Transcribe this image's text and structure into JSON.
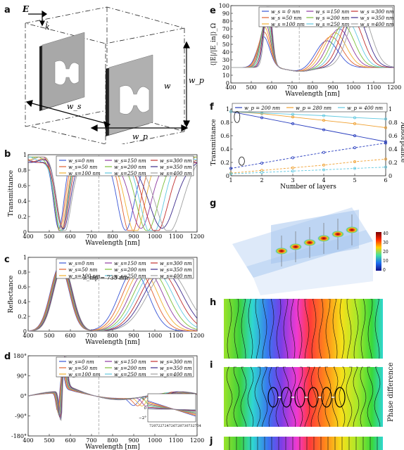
{
  "panel_labels": {
    "a": "a",
    "b": "b",
    "c": "c",
    "d": "d",
    "e": "e",
    "f": "f",
    "g": "g",
    "h": "h",
    "i": "i",
    "j": "j"
  },
  "schematic": {
    "field_e": "E",
    "field_k": "k̂",
    "ws": "w_s",
    "wp_bottom": "w_p",
    "wp_side": "w_p",
    "w": "w"
  },
  "legend_ws": [
    "w_s=0  nm",
    "w_s=150  nm",
    "w_s=300  nm",
    "w_s=50  nm",
    "w_s=200  nm",
    "w_s=350  nm",
    "w_s=100  nm",
    "w_s=250  nm",
    "w_s=400  nm"
  ],
  "legend_ws_e": [
    "w_s = 0  nm",
    "w_s =150  nm",
    "w_s =300  nm",
    "w_s =50  nm",
    "w_s =200  nm",
    "w_s =350  nm",
    "w_s =100  nm",
    "w_s =250  nm",
    "w_s =400  nm"
  ],
  "lambda_label": "λ_mp = 735 nm",
  "colorbar_ticks": [
    "40",
    "30",
    "20",
    "10",
    "0"
  ],
  "inset_ticks_x": [
    "720",
    "722",
    "724",
    "726",
    "728",
    "730",
    "732",
    "734"
  ],
  "inset_ticks_y": [
    "2°",
    "0",
    "−2°"
  ],
  "phase_side_label": "Phase difference",
  "chart_data": [
    {
      "type": "line",
      "id": "b",
      "ylabel": "Transmittance",
      "xlabel": "Wavelength [nm]",
      "xlim": [
        400,
        1200
      ],
      "ylim": [
        0,
        1
      ],
      "xticks": [
        400,
        500,
        600,
        700,
        800,
        900,
        1000,
        1100,
        1200
      ],
      "yticks": [
        0,
        0.2,
        0.4,
        0.6,
        0.8,
        1
      ]
    },
    {
      "type": "line",
      "id": "c",
      "ylabel": "Reflectance",
      "xlabel": "Wavelength [nm]",
      "xlim": [
        400,
        1200
      ],
      "ylim": [
        0,
        1
      ],
      "xticks": [
        400,
        500,
        600,
        700,
        800,
        900,
        1000,
        1100,
        1200
      ],
      "yticks": [
        0,
        0.2,
        0.4,
        0.6,
        0.8,
        1
      ]
    },
    {
      "type": "line",
      "id": "d",
      "ylabel": "",
      "xlabel": "Wavelength [nm]",
      "xlim": [
        400,
        1200
      ],
      "ylim": [
        -180,
        180
      ],
      "xticks": [
        400,
        500,
        600,
        700,
        800,
        900,
        1000,
        1100,
        1200
      ],
      "ytick_labels": [
        "180°",
        "90°",
        "0°",
        "-90°",
        "-180°"
      ]
    },
    {
      "type": "line",
      "id": "e",
      "ylabel": "⟨|E|/|E_in|⟩_Ω",
      "xlabel": "Wavelength [nm]",
      "xlim": [
        400,
        1200
      ],
      "ylim": [
        0,
        100
      ],
      "xticks": [
        400,
        500,
        600,
        700,
        800,
        900,
        1000,
        1100,
        1200
      ],
      "yticks": [
        0,
        10,
        20,
        30,
        40,
        50,
        60,
        70,
        80,
        90,
        100
      ]
    },
    {
      "type": "line",
      "id": "f",
      "xlabel": "Number of layers",
      "ylabel": "Transmittance",
      "ylabel_right": "Absorptance",
      "xlim": [
        1,
        6
      ],
      "ylim": [
        0,
        1
      ],
      "xticks": [
        1,
        2,
        3,
        4,
        5,
        6
      ],
      "yticks": [
        0,
        0.2,
        0.4,
        0.6,
        0.8,
        1
      ],
      "series": [
        {
          "name": "w_p = 200  nm",
          "color": "#2a3fbf",
          "marker": "x",
          "T": [
            0.96,
            0.87,
            0.78,
            0.69,
            0.6,
            0.51
          ],
          "A": [
            0.11,
            0.19,
            0.27,
            0.35,
            0.42,
            0.49
          ]
        },
        {
          "name": "w_p = 280  nm",
          "color": "#f0a030",
          "marker": "o",
          "T": [
            0.96,
            0.93,
            0.88,
            0.83,
            0.78,
            0.72
          ],
          "A": [
            0.04,
            0.08,
            0.12,
            0.16,
            0.21,
            0.25
          ]
        },
        {
          "name": "w_p = 400  nm",
          "color": "#60c8e0",
          "marker": "*",
          "T": [
            0.96,
            0.94,
            0.92,
            0.9,
            0.87,
            0.85
          ],
          "A": [
            0.03,
            0.05,
            0.07,
            0.09,
            0.11,
            0.13
          ]
        }
      ]
    }
  ],
  "colors": [
    "#3a56d6",
    "#e06030",
    "#f0b030",
    "#8e3aa0",
    "#7cbf3a",
    "#60c8e0",
    "#c0302f",
    "#3c2a8c",
    "#9fa0a0"
  ]
}
